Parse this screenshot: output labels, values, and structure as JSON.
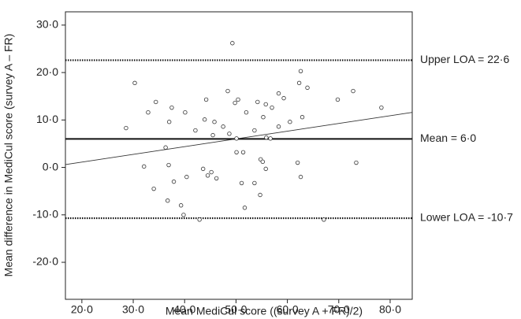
{
  "chart_data": {
    "type": "scatter",
    "x_label": "Mean MediCul score ((survey A + FR)/2)",
    "y_label": "Mean difference in MediCul score (survey A – FR)",
    "xlim": [
      16.8,
      84.3
    ],
    "ylim": [
      -27.8,
      32.8
    ],
    "xticks": [
      {
        "value": 20,
        "label": "20·0"
      },
      {
        "value": 30,
        "label": "30·0"
      },
      {
        "value": 40,
        "label": "40·0"
      },
      {
        "value": 50,
        "label": "50·0"
      },
      {
        "value": 60,
        "label": "60·0"
      },
      {
        "value": 70,
        "label": "70·0"
      },
      {
        "value": 80,
        "label": "80·0"
      }
    ],
    "yticks": [
      {
        "value": -20,
        "label": "-20·0"
      },
      {
        "value": -10,
        "label": "-10·0"
      },
      {
        "value": 0,
        "label": "0·0"
      },
      {
        "value": 10,
        "label": "10·0"
      },
      {
        "value": 20,
        "label": "20·0"
      },
      {
        "value": 30,
        "label": "30·0"
      }
    ],
    "marker_color": "#333333",
    "x": [
      28.6,
      30.3,
      32.9,
      32.1,
      34.4,
      34.0,
      36.3,
      37.0,
      36.9,
      36.7,
      37.5,
      37.9,
      39.3,
      39.8,
      40.1,
      40.4,
      42.1,
      42.9,
      43.6,
      43.9,
      44.2,
      44.5,
      45.2,
      45.5,
      45.8,
      46.2,
      47.5,
      48.4,
      48.7,
      49.3,
      49.8,
      50.1,
      50.1,
      50.4,
      51.1,
      51.4,
      51.7,
      52.0,
      53.6,
      53.6,
      54.2,
      54.7,
      54.8,
      55.2,
      55.3,
      55.8,
      55.8,
      55.9,
      56.7,
      57.0,
      58.3,
      58.3,
      59.3,
      60.5,
      62.0,
      62.3,
      62.6,
      62.6,
      62.9,
      63.9,
      67.1,
      69.8,
      72.8,
      73.4,
      78.3
    ],
    "values": [
      8.3,
      17.8,
      11.6,
      0.2,
      13.8,
      -4.5,
      4.2,
      9.6,
      0.5,
      -7.0,
      12.6,
      -3.0,
      -8.0,
      -10.0,
      11.6,
      -2.0,
      7.8,
      -11.0,
      -0.3,
      10.1,
      14.3,
      -1.7,
      -1.0,
      6.8,
      9.6,
      -2.3,
      8.6,
      16.1,
      7.1,
      26.2,
      13.6,
      3.2,
      6.1,
      14.3,
      -3.3,
      3.2,
      -8.5,
      11.6,
      -3.3,
      7.8,
      13.8,
      -5.8,
      1.7,
      1.2,
      10.6,
      -0.3,
      13.3,
      6.3,
      6.1,
      12.6,
      15.6,
      8.6,
      14.6,
      9.6,
      1.0,
      17.8,
      20.3,
      -2.0,
      10.6,
      16.8,
      -11.0,
      14.3,
      16.1,
      1.0,
      12.6
    ],
    "reference_lines": [
      {
        "value": 22.6,
        "label": "Upper LOA = 22·6",
        "line_style": "dotted"
      },
      {
        "value": 6.0,
        "label": "Mean = 6·0",
        "line_style": "solid"
      },
      {
        "value": -10.7,
        "label": "Lower LOA = -10·7",
        "line_style": "dotted"
      }
    ],
    "trend_line": {
      "x": [
        16.8,
        84.3
      ],
      "y": [
        0.6,
        11.6
      ]
    }
  }
}
